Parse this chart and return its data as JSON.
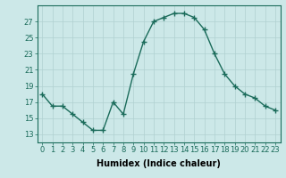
{
  "x": [
    0,
    1,
    2,
    3,
    4,
    5,
    6,
    7,
    8,
    9,
    10,
    11,
    12,
    13,
    14,
    15,
    16,
    17,
    18,
    19,
    20,
    21,
    22,
    23
  ],
  "y": [
    18.0,
    16.5,
    16.5,
    15.5,
    14.5,
    13.5,
    13.5,
    17.0,
    15.5,
    20.5,
    24.5,
    27.0,
    27.5,
    28.0,
    28.0,
    27.5,
    26.0,
    23.0,
    20.5,
    19.0,
    18.0,
    17.5,
    16.5,
    16.0
  ],
  "line_color": "#1a6b5a",
  "bg_color": "#cce8e8",
  "grid_color": "#b0d0d0",
  "xlabel": "Humidex (Indice chaleur)",
  "xlim": [
    -0.5,
    23.5
  ],
  "ylim": [
    12,
    29
  ],
  "yticks": [
    13,
    15,
    17,
    19,
    21,
    23,
    25,
    27
  ],
  "xticks": [
    0,
    1,
    2,
    3,
    4,
    5,
    6,
    7,
    8,
    9,
    10,
    11,
    12,
    13,
    14,
    15,
    16,
    17,
    18,
    19,
    20,
    21,
    22,
    23
  ],
  "marker": "+",
  "markersize": 4,
  "linewidth": 1.0,
  "xlabel_fontsize": 7,
  "tick_fontsize": 6,
  "markeredgewidth": 1.0
}
